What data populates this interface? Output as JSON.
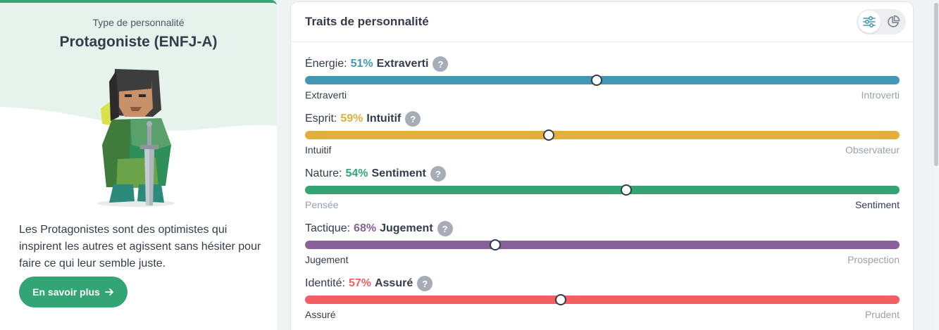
{
  "personality": {
    "kicker": "Type de personnalité",
    "title": "Protagoniste (ENFJ-A)",
    "description": "Les Protagonistes sont des optimistes qui inspirent les autres et agissent sans hésiter pour faire ce qui leur semble juste.",
    "learn_more": "En savoir plus",
    "accent": "#33a474"
  },
  "traits_card": {
    "title": "Traits de personnalité",
    "views": [
      "sliders-icon",
      "pie-chart-icon"
    ],
    "traits": [
      {
        "name": "Énergie:",
        "percent": "51%",
        "dominant": "Extraverti",
        "left_label": "Extraverti",
        "right_label": "Introverti",
        "color": "#4298b4",
        "position": 0.49,
        "strong_side": "left"
      },
      {
        "name": "Esprit:",
        "percent": "59%",
        "dominant": "Intuitif",
        "left_label": "Intuitif",
        "right_label": "Observateur",
        "color": "#e4ae3a",
        "position": 0.41,
        "strong_side": "left"
      },
      {
        "name": "Nature:",
        "percent": "54%",
        "dominant": "Sentiment",
        "left_label": "Pensée",
        "right_label": "Sentiment",
        "color": "#33a474",
        "position": 0.54,
        "strong_side": "right"
      },
      {
        "name": "Tactique:",
        "percent": "68%",
        "dominant": "Jugement",
        "left_label": "Jugement",
        "right_label": "Prospection",
        "color": "#88619a",
        "position": 0.32,
        "strong_side": "left"
      },
      {
        "name": "Identité:",
        "percent": "57%",
        "dominant": "Assuré",
        "left_label": "Assuré",
        "right_label": "Prudent",
        "color": "#f25e62",
        "position": 0.43,
        "strong_side": "left"
      }
    ]
  }
}
